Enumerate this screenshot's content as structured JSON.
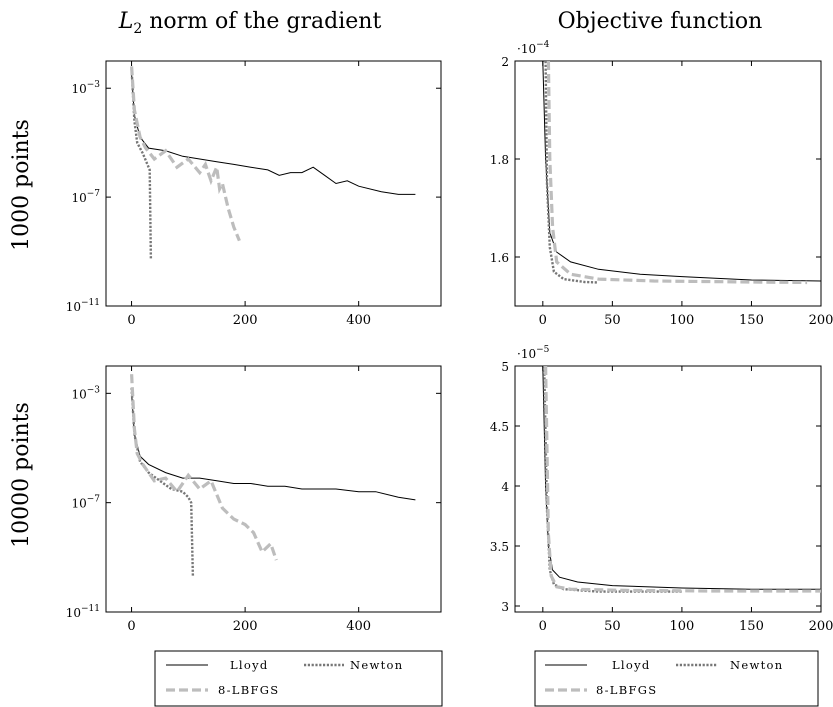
{
  "column_titles": [
    "L2 norm of the gradient",
    "Objective function"
  ],
  "row_titles": [
    "1000 points",
    "10000 points"
  ],
  "styles": {
    "Lloyd": {
      "color": "#000000",
      "width": 1,
      "dash": ""
    },
    "Newton": {
      "color": "#777777",
      "width": 2.4,
      "dash": "2.2,1.6"
    },
    "8-LBFGS": {
      "color": "#bdbdbd",
      "width": 3.2,
      "dash": "9,4"
    }
  },
  "chart_data": [
    {
      "id": "grad_1000",
      "type": "line",
      "ylog": true,
      "xlim": [
        -45,
        545
      ],
      "ylim": [
        -11,
        -2
      ],
      "xticks": [
        0,
        200,
        400
      ],
      "yticks": [
        {
          "v": -3,
          "label": "10",
          "exp": "−3"
        },
        {
          "v": -7,
          "label": "10",
          "exp": "−7"
        },
        {
          "v": -11,
          "label": "10",
          "exp": "−11"
        }
      ],
      "series": [
        {
          "name": "Lloyd",
          "points": [
            [
              0,
              -2.5
            ],
            [
              5,
              -4.0
            ],
            [
              15,
              -4.8
            ],
            [
              30,
              -5.2
            ],
            [
              60,
              -5.3
            ],
            [
              90,
              -5.5
            ],
            [
              120,
              -5.6
            ],
            [
              150,
              -5.7
            ],
            [
              180,
              -5.8
            ],
            [
              210,
              -5.9
            ],
            [
              240,
              -6.0
            ],
            [
              260,
              -6.2
            ],
            [
              280,
              -6.1
            ],
            [
              300,
              -6.1
            ],
            [
              320,
              -5.9
            ],
            [
              340,
              -6.2
            ],
            [
              360,
              -6.5
            ],
            [
              380,
              -6.4
            ],
            [
              400,
              -6.6
            ],
            [
              440,
              -6.8
            ],
            [
              470,
              -6.9
            ],
            [
              500,
              -6.9
            ]
          ]
        },
        {
          "name": "Newton",
          "points": [
            [
              0,
              -2.3
            ],
            [
              5,
              -4.2
            ],
            [
              10,
              -5.0
            ],
            [
              20,
              -5.4
            ],
            [
              28,
              -5.8
            ],
            [
              32,
              -6.0
            ],
            [
              34,
              -9.3
            ]
          ]
        },
        {
          "name": "8-LBFGS",
          "points": [
            [
              0,
              -2.2
            ],
            [
              5,
              -3.8
            ],
            [
              15,
              -4.8
            ],
            [
              25,
              -5.2
            ],
            [
              40,
              -5.6
            ],
            [
              60,
              -5.3
            ],
            [
              80,
              -5.9
            ],
            [
              100,
              -5.6
            ],
            [
              120,
              -6.1
            ],
            [
              130,
              -5.8
            ],
            [
              140,
              -6.4
            ],
            [
              150,
              -5.9
            ],
            [
              155,
              -6.7
            ],
            [
              160,
              -6.5
            ],
            [
              170,
              -7.4
            ],
            [
              180,
              -8.1
            ],
            [
              190,
              -8.6
            ]
          ]
        }
      ]
    },
    {
      "id": "obj_1000",
      "type": "line",
      "ylog": false,
      "multiplier": "·10−4",
      "xlim": [
        -20,
        200
      ],
      "ylim": [
        1.5,
        2.0
      ],
      "xticks": [
        0,
        50,
        100,
        150,
        200
      ],
      "yticks": [
        {
          "v": 1.6,
          "label": "1.6"
        },
        {
          "v": 1.8,
          "label": "1.8"
        },
        {
          "v": 2.0,
          "label": "2"
        }
      ],
      "series": [
        {
          "name": "Lloyd",
          "points": [
            [
              0,
              2.0
            ],
            [
              2,
              1.8
            ],
            [
              5,
              1.65
            ],
            [
              10,
              1.61
            ],
            [
              20,
              1.59
            ],
            [
              40,
              1.575
            ],
            [
              70,
              1.565
            ],
            [
              100,
              1.56
            ],
            [
              150,
              1.553
            ],
            [
              200,
              1.551
            ]
          ]
        },
        {
          "name": "Newton",
          "points": [
            [
              2,
              2.0
            ],
            [
              3,
              1.75
            ],
            [
              5,
              1.62
            ],
            [
              8,
              1.57
            ],
            [
              15,
              1.555
            ],
            [
              30,
              1.549
            ],
            [
              40,
              1.548
            ]
          ]
        },
        {
          "name": "8-LBFGS",
          "points": [
            [
              4,
              2.0
            ],
            [
              5,
              1.8
            ],
            [
              7,
              1.66
            ],
            [
              10,
              1.59
            ],
            [
              20,
              1.565
            ],
            [
              40,
              1.555
            ],
            [
              80,
              1.551
            ],
            [
              150,
              1.549
            ],
            [
              190,
              1.548
            ]
          ]
        }
      ]
    },
    {
      "id": "grad_10000",
      "type": "line",
      "ylog": true,
      "xlim": [
        -45,
        545
      ],
      "ylim": [
        -11,
        -2
      ],
      "xticks": [
        0,
        200,
        400
      ],
      "yticks": [
        {
          "v": -3,
          "label": "10",
          "exp": "−3"
        },
        {
          "v": -7,
          "label": "10",
          "exp": "−7"
        },
        {
          "v": -11,
          "label": "10",
          "exp": "−11"
        }
      ],
      "series": [
        {
          "name": "Lloyd",
          "points": [
            [
              0,
              -3.0
            ],
            [
              5,
              -4.5
            ],
            [
              15,
              -5.3
            ],
            [
              30,
              -5.6
            ],
            [
              60,
              -5.9
            ],
            [
              90,
              -6.1
            ],
            [
              120,
              -6.1
            ],
            [
              150,
              -6.2
            ],
            [
              180,
              -6.3
            ],
            [
              210,
              -6.3
            ],
            [
              240,
              -6.4
            ],
            [
              270,
              -6.4
            ],
            [
              300,
              -6.5
            ],
            [
              330,
              -6.5
            ],
            [
              360,
              -6.5
            ],
            [
              400,
              -6.6
            ],
            [
              430,
              -6.6
            ],
            [
              470,
              -6.8
            ],
            [
              500,
              -6.9
            ]
          ]
        },
        {
          "name": "Newton",
          "points": [
            [
              0,
              -2.8
            ],
            [
              5,
              -4.5
            ],
            [
              15,
              -5.5
            ],
            [
              30,
              -5.9
            ],
            [
              50,
              -6.2
            ],
            [
              70,
              -6.5
            ],
            [
              90,
              -6.6
            ],
            [
              100,
              -6.8
            ],
            [
              105,
              -7.0
            ],
            [
              108,
              -9.7
            ]
          ]
        },
        {
          "name": "8-LBFGS",
          "points": [
            [
              0,
              -2.3
            ],
            [
              5,
              -4.3
            ],
            [
              10,
              -5.2
            ],
            [
              20,
              -5.6
            ],
            [
              40,
              -6.2
            ],
            [
              60,
              -6.1
            ],
            [
              80,
              -6.6
            ],
            [
              100,
              -6.0
            ],
            [
              120,
              -6.5
            ],
            [
              140,
              -6.2
            ],
            [
              160,
              -7.2
            ],
            [
              180,
              -7.6
            ],
            [
              200,
              -7.8
            ],
            [
              215,
              -8.1
            ],
            [
              230,
              -8.8
            ],
            [
              245,
              -8.5
            ],
            [
              255,
              -9.1
            ]
          ]
        }
      ]
    },
    {
      "id": "obj_10000",
      "type": "line",
      "ylog": false,
      "multiplier": "·10−5",
      "xlim": [
        -20,
        200
      ],
      "ylim": [
        2.95,
        5.0
      ],
      "xticks": [
        0,
        50,
        100,
        150,
        200
      ],
      "yticks": [
        {
          "v": 3,
          "label": "3"
        },
        {
          "v": 3.5,
          "label": "3.5"
        },
        {
          "v": 4,
          "label": "4"
        },
        {
          "v": 4.5,
          "label": "4.5"
        },
        {
          "v": 5,
          "label": "5"
        }
      ],
      "series": [
        {
          "name": "Lloyd",
          "points": [
            [
              0,
              5.0
            ],
            [
              2,
              4.0
            ],
            [
              4,
              3.5
            ],
            [
              7,
              3.3
            ],
            [
              12,
              3.24
            ],
            [
              25,
              3.2
            ],
            [
              50,
              3.17
            ],
            [
              100,
              3.15
            ],
            [
              150,
              3.14
            ],
            [
              200,
              3.14
            ]
          ]
        },
        {
          "name": "Newton",
          "points": [
            [
              1,
              5.0
            ],
            [
              3,
              3.8
            ],
            [
              5,
              3.3
            ],
            [
              8,
              3.18
            ],
            [
              15,
              3.14
            ],
            [
              40,
              3.12
            ],
            [
              100,
              3.12
            ]
          ]
        },
        {
          "name": "8-LBFGS",
          "points": [
            [
              2,
              5.0
            ],
            [
              4,
              3.6
            ],
            [
              6,
              3.25
            ],
            [
              10,
              3.16
            ],
            [
              20,
              3.14
            ],
            [
              60,
              3.13
            ],
            [
              120,
              3.125
            ],
            [
              200,
              3.125
            ]
          ]
        }
      ]
    }
  ],
  "legend": {
    "items": [
      "Lloyd",
      "Newton",
      "8-LBFGS"
    ]
  }
}
